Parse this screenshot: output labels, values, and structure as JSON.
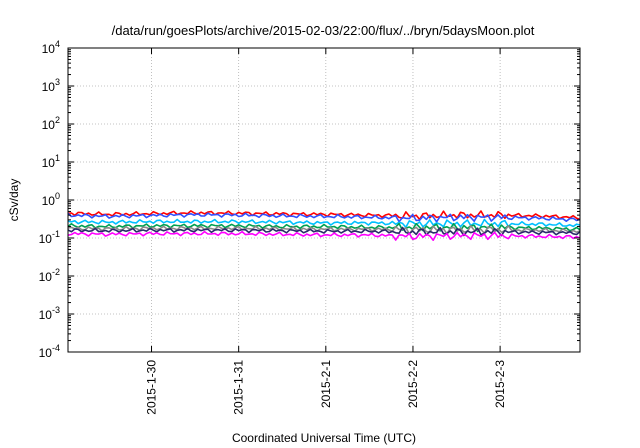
{
  "chart_data": {
    "type": "line",
    "title": "/data/run/goesPlots/archive/2015-02-03/22:00/flux/../bryn/5daysMoon.plot",
    "xlabel": "Coordinated Universal Time (UTC)",
    "ylabel": "cSv/day",
    "yscale": "log",
    "ylim": [
      0.0001,
      10000
    ],
    "xlim": [
      "2015-01-29T01:00",
      "2015-02-03T22:00"
    ],
    "grid": true,
    "y_ticks": [
      {
        "base": "10",
        "exp": "-4"
      },
      {
        "base": "10",
        "exp": "-3"
      },
      {
        "base": "10",
        "exp": "-2"
      },
      {
        "base": "10",
        "exp": "-1"
      },
      {
        "base": "10",
        "exp": "0"
      },
      {
        "base": "10",
        "exp": "1"
      },
      {
        "base": "10",
        "exp": "2"
      },
      {
        "base": "10",
        "exp": "3"
      },
      {
        "base": "10",
        "exp": "4"
      }
    ],
    "x_ticks": [
      "2015-1-30",
      "2015-1-31",
      "2015-2-1",
      "2015-2-2",
      "2015-2-3"
    ],
    "x_tick_dates": [
      "2015-01-30",
      "2015-01-31",
      "2015-02-01",
      "2015-02-02",
      "2015-02-03"
    ],
    "series": [
      {
        "color": "#ff0000",
        "x": [
          "2015-01-29T01:00",
          "2015-01-29T12:00",
          "2015-01-30T00:00",
          "2015-01-30T12:00",
          "2015-01-31T00:00",
          "2015-01-31T12:00",
          "2015-02-01T00:00",
          "2015-02-01T12:00",
          "2015-02-02T00:00",
          "2015-02-02T12:00",
          "2015-02-03T00:00",
          "2015-02-03T12:00",
          "2015-02-03T22:00"
        ],
        "values": [
          0.45,
          0.42,
          0.44,
          0.46,
          0.45,
          0.43,
          0.42,
          0.4,
          0.38,
          0.4,
          0.4,
          0.38,
          0.34
        ]
      },
      {
        "color": "#3050ff",
        "x": [
          "2015-01-29T01:00",
          "2015-01-29T12:00",
          "2015-01-30T00:00",
          "2015-01-30T12:00",
          "2015-01-31T00:00",
          "2015-01-31T12:00",
          "2015-02-01T00:00",
          "2015-02-01T12:00",
          "2015-02-02T00:00",
          "2015-02-02T12:00",
          "2015-02-03T00:00",
          "2015-02-03T12:00",
          "2015-02-03T22:00"
        ],
        "values": [
          0.4,
          0.37,
          0.39,
          0.41,
          0.4,
          0.38,
          0.37,
          0.35,
          0.33,
          0.35,
          0.35,
          0.33,
          0.3
        ]
      },
      {
        "color": "#00c0ff",
        "x": [
          "2015-01-29T01:00",
          "2015-01-29T12:00",
          "2015-01-30T00:00",
          "2015-01-30T12:00",
          "2015-01-31T00:00",
          "2015-01-31T12:00",
          "2015-02-01T00:00",
          "2015-02-01T12:00",
          "2015-02-02T00:00",
          "2015-02-02T12:00",
          "2015-02-03T00:00",
          "2015-02-03T12:00",
          "2015-02-03T22:00"
        ],
        "values": [
          0.27,
          0.26,
          0.27,
          0.27,
          0.27,
          0.26,
          0.25,
          0.25,
          0.24,
          0.24,
          0.24,
          0.23,
          0.21
        ]
      },
      {
        "color": "#00a050",
        "x": [
          "2015-01-29T01:00",
          "2015-01-29T12:00",
          "2015-01-30T00:00",
          "2015-01-30T12:00",
          "2015-01-31T00:00",
          "2015-01-31T12:00",
          "2015-02-01T00:00",
          "2015-02-01T12:00",
          "2015-02-02T00:00",
          "2015-02-02T12:00",
          "2015-02-03T00:00",
          "2015-02-03T12:00",
          "2015-02-03T22:00"
        ],
        "values": [
          0.21,
          0.2,
          0.21,
          0.21,
          0.21,
          0.2,
          0.2,
          0.19,
          0.19,
          0.19,
          0.19,
          0.18,
          0.17
        ]
      },
      {
        "color": "#8a8a8a",
        "x": [
          "2015-01-29T01:00",
          "2015-01-29T12:00",
          "2015-01-30T00:00",
          "2015-01-30T12:00",
          "2015-01-31T00:00",
          "2015-01-31T12:00",
          "2015-02-01T00:00",
          "2015-02-01T12:00",
          "2015-02-02T00:00",
          "2015-02-02T12:00",
          "2015-02-03T00:00",
          "2015-02-03T12:00",
          "2015-02-03T22:00"
        ],
        "values": [
          0.18,
          0.175,
          0.18,
          0.18,
          0.18,
          0.175,
          0.17,
          0.17,
          0.165,
          0.165,
          0.165,
          0.16,
          0.15
        ]
      },
      {
        "color": "#2a2a6a",
        "x": [
          "2015-01-29T01:00",
          "2015-01-29T12:00",
          "2015-01-30T00:00",
          "2015-01-30T12:00",
          "2015-01-31T00:00",
          "2015-01-31T12:00",
          "2015-02-01T00:00",
          "2015-02-01T12:00",
          "2015-02-02T00:00",
          "2015-02-02T12:00",
          "2015-02-03T00:00",
          "2015-02-03T12:00",
          "2015-02-03T22:00"
        ],
        "values": [
          0.16,
          0.155,
          0.16,
          0.16,
          0.16,
          0.155,
          0.15,
          0.15,
          0.145,
          0.145,
          0.145,
          0.14,
          0.135
        ]
      },
      {
        "color": "#ff00ff",
        "x": [
          "2015-01-29T01:00",
          "2015-01-29T12:00",
          "2015-01-30T00:00",
          "2015-01-30T12:00",
          "2015-01-31T00:00",
          "2015-01-31T12:00",
          "2015-02-01T00:00",
          "2015-02-01T12:00",
          "2015-02-02T00:00",
          "2015-02-02T12:00",
          "2015-02-03T00:00",
          "2015-02-03T12:00",
          "2015-02-03T22:00"
        ],
        "values": [
          0.13,
          0.125,
          0.13,
          0.13,
          0.13,
          0.125,
          0.12,
          0.12,
          0.11,
          0.115,
          0.115,
          0.11,
          0.105
        ]
      }
    ]
  }
}
